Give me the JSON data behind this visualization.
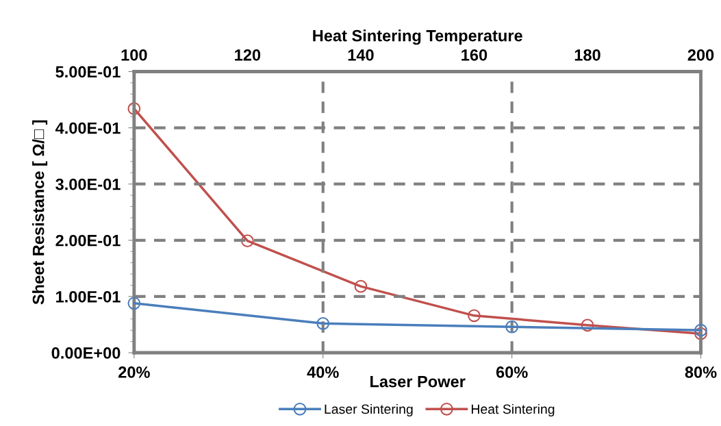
{
  "chart_data": {
    "type": "line",
    "xlabel": "Laser Power",
    "x2label": "Heat Sintering Temperature",
    "ylabel": "Sheet Resistance [ Ω/□ ]",
    "xlim": [
      20,
      80
    ],
    "xticks": [
      {
        "value": 20,
        "label": "20%"
      },
      {
        "value": 40,
        "label": "40%"
      },
      {
        "value": 60,
        "label": "60%"
      },
      {
        "value": 80,
        "label": "80%"
      }
    ],
    "x2lim": [
      100,
      200
    ],
    "x2ticks": [
      100,
      120,
      140,
      160,
      180,
      200
    ],
    "ylim": [
      0,
      0.5
    ],
    "yticks": [
      {
        "value": 0,
        "label": "0.00E+00"
      },
      {
        "value": 0.1,
        "label": "1.00E-01"
      },
      {
        "value": 0.2,
        "label": "2.00E-01"
      },
      {
        "value": 0.3,
        "label": "3.00E-01"
      },
      {
        "value": 0.4,
        "label": "4.00E-01"
      },
      {
        "value": 0.5,
        "label": "5.00E-01"
      }
    ],
    "grid": true,
    "legend": "bottom",
    "marker": "circle",
    "line_style": "solid",
    "series": [
      {
        "name": "Laser Sintering",
        "color": "#4a7ebb",
        "x": [
          20,
          40,
          60,
          80
        ],
        "values": [
          0.088,
          0.052,
          0.046,
          0.04
        ]
      },
      {
        "name": "Heat Sintering",
        "color": "#c0504d",
        "axis": "x2",
        "x": [
          100,
          120,
          140,
          160,
          180,
          200
        ],
        "values": [
          0.434,
          0.199,
          0.118,
          0.066,
          0.049,
          0.034
        ]
      }
    ]
  }
}
